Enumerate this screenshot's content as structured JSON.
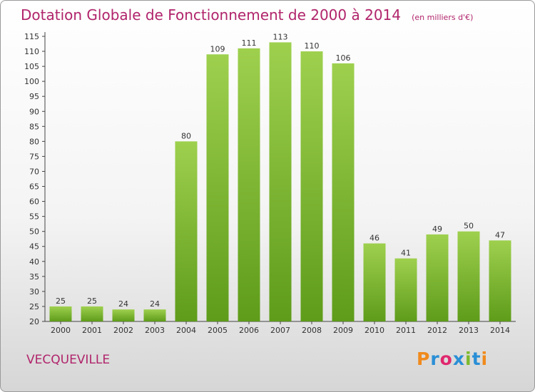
{
  "chart_data": {
    "type": "bar",
    "title": "Dotation Globale de Fonctionnement de 2000 à 2014",
    "subtitle": "(en milliers d'€)",
    "categories": [
      "2000",
      "2001",
      "2002",
      "2003",
      "2004",
      "2005",
      "2006",
      "2007",
      "2008",
      "2009",
      "2010",
      "2011",
      "2012",
      "2013",
      "2014"
    ],
    "values": [
      25,
      25,
      24,
      24,
      80,
      109,
      111,
      113,
      110,
      106,
      46,
      41,
      49,
      50,
      47
    ],
    "xlabel": "",
    "ylabel": "",
    "ylim": [
      20,
      115
    ],
    "yticks": [
      20,
      25,
      30,
      35,
      40,
      45,
      50,
      55,
      60,
      65,
      70,
      75,
      80,
      85,
      90,
      95,
      100,
      105,
      110,
      115
    ],
    "grid": false,
    "bar_color": "#7dba2e"
  },
  "footer": {
    "commune": "VECQUEVILLE",
    "logo_text": "Proxiti"
  },
  "colors": {
    "accent": "#b0246a",
    "logo": [
      "#f08a1c",
      "#2a8fd6",
      "#e0286e",
      "#2a8fd6",
      "#7dba2e",
      "#2a8fd6",
      "#f08a1c"
    ]
  }
}
